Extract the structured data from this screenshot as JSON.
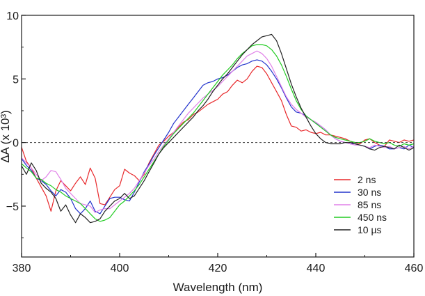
{
  "chart_data": {
    "type": "line",
    "xlabel": "Wavelength (nm)",
    "ylabel": "ΔA (x 10³)",
    "xlim": [
      380,
      460
    ],
    "ylim": [
      -9,
      10
    ],
    "xticks": [
      "380",
      "400",
      "420",
      "440",
      "460"
    ],
    "yticks": [
      "10",
      "5",
      "0",
      "−5"
    ],
    "grid": false,
    "legend_position": "lower-right",
    "reference_line": {
      "y": 0,
      "style": "dashed"
    },
    "series": [
      {
        "name": "2 ns",
        "color": "#e8282b",
        "x": [
          379.5,
          381,
          382,
          383,
          384,
          385,
          386,
          387,
          388,
          389,
          390,
          391,
          392,
          393,
          394,
          395,
          396,
          397,
          398,
          399,
          400,
          401,
          402,
          403,
          404,
          405,
          406,
          407,
          408,
          409,
          410,
          411,
          412,
          413,
          414,
          415,
          416,
          417,
          418,
          419,
          420,
          421,
          422,
          423,
          424,
          425,
          426,
          427,
          428,
          429,
          430,
          431,
          432,
          433,
          434,
          435,
          436,
          437,
          438,
          439,
          440,
          441,
          442,
          443,
          444,
          445,
          446,
          447,
          448,
          449,
          450,
          451,
          452,
          453,
          454,
          455,
          456,
          457,
          458,
          459,
          460
        ],
        "y": [
          0.2,
          -1.5,
          -2.0,
          -2.8,
          -3.5,
          -4.2,
          -5.4,
          -3.8,
          -3.0,
          -3.4,
          -3.8,
          -3.2,
          -2.7,
          -3.3,
          -2.0,
          -2.8,
          -4.8,
          -4.9,
          -4.3,
          -3.7,
          -3.4,
          -2.1,
          -2.4,
          -2.6,
          -3.0,
          -2.5,
          -1.6,
          -0.9,
          -0.2,
          0.1,
          0.5,
          0.8,
          1.2,
          1.6,
          1.8,
          2.2,
          2.4,
          2.7,
          3.0,
          3.2,
          3.4,
          3.8,
          4.0,
          4.5,
          4.9,
          4.7,
          5.0,
          5.6,
          6.0,
          5.9,
          5.4,
          4.7,
          4.0,
          3.3,
          2.2,
          1.3,
          1.2,
          0.9,
          1.0,
          0.8,
          0.7,
          0.8,
          0.6,
          0.6,
          0.5,
          0.4,
          0.3,
          0.1,
          0.0,
          -0.1,
          0.2,
          0.3,
          0.0,
          -0.2,
          -0.3,
          0.2,
          0.1,
          0.0,
          0.2,
          0.1,
          0.2
        ]
      },
      {
        "name": "30 ns",
        "color": "#2233cc",
        "x": [
          379.5,
          381,
          382,
          383,
          384,
          385,
          386,
          387,
          388,
          389,
          390,
          391,
          392,
          393,
          394,
          395,
          396,
          397,
          398,
          399,
          400,
          401,
          402,
          403,
          404,
          405,
          406,
          407,
          408,
          409,
          410,
          411,
          412,
          413,
          414,
          415,
          416,
          417,
          418,
          419,
          420,
          421,
          422,
          423,
          424,
          425,
          426,
          427,
          428,
          429,
          430,
          431,
          432,
          433,
          434,
          435,
          436,
          437,
          438,
          439,
          440,
          441,
          442,
          443,
          444,
          445,
          446,
          447,
          448,
          449,
          450,
          451,
          452,
          453,
          454,
          455,
          456,
          457,
          458,
          459,
          460
        ],
        "y": [
          -1.0,
          -1.8,
          -2.2,
          -2.8,
          -3.0,
          -3.3,
          -3.8,
          -4.2,
          -3.7,
          -3.9,
          -4.4,
          -5.2,
          -5.6,
          -5.2,
          -4.6,
          -5.4,
          -5.6,
          -5.0,
          -4.4,
          -4.3,
          -4.3,
          -4.5,
          -4.6,
          -3.9,
          -3.1,
          -2.3,
          -1.7,
          -1.0,
          -0.4,
          0.2,
          0.8,
          1.5,
          2.0,
          2.5,
          3.0,
          3.5,
          4.0,
          4.5,
          4.7,
          4.8,
          5.0,
          5.1,
          5.3,
          5.6,
          5.9,
          6.1,
          6.2,
          6.4,
          6.5,
          6.4,
          6.1,
          5.6,
          5.0,
          4.3,
          3.5,
          2.8,
          2.4,
          2.3,
          2.1,
          1.8,
          1.5,
          1.3,
          1.0,
          0.6,
          0.3,
          0.1,
          0.0,
          -0.1,
          -0.1,
          -0.2,
          -0.3,
          -0.5,
          -0.3,
          -0.2,
          -0.3,
          -0.5,
          -0.5,
          -0.4,
          -0.5,
          -0.2,
          -0.4
        ]
      },
      {
        "name": "85 ns",
        "color": "#e080e8",
        "x": [
          379.5,
          381,
          382,
          383,
          384,
          385,
          386,
          387,
          388,
          389,
          390,
          391,
          392,
          393,
          394,
          395,
          396,
          397,
          398,
          399,
          400,
          401,
          402,
          403,
          404,
          405,
          406,
          407,
          408,
          409,
          410,
          411,
          412,
          413,
          414,
          415,
          416,
          417,
          418,
          419,
          420,
          421,
          422,
          423,
          424,
          425,
          426,
          427,
          428,
          429,
          430,
          431,
          432,
          433,
          434,
          435,
          436,
          437,
          438,
          439,
          440,
          441,
          442,
          443,
          444,
          445,
          446,
          447,
          448,
          449,
          450,
          451,
          452,
          453,
          454,
          455,
          456,
          457,
          458,
          459,
          460
        ],
        "y": [
          -1.0,
          -1.6,
          -2.0,
          -2.5,
          -3.0,
          -2.7,
          -2.2,
          -2.3,
          -2.9,
          -3.6,
          -4.0,
          -4.4,
          -4.8,
          -4.9,
          -5.0,
          -5.5,
          -5.3,
          -5.2,
          -5.2,
          -4.9,
          -4.6,
          -4.3,
          -4.0,
          -3.6,
          -3.0,
          -2.4,
          -1.8,
          -1.3,
          -0.7,
          -0.2,
          0.3,
          0.8,
          1.3,
          1.8,
          2.3,
          2.7,
          3.1,
          3.5,
          3.8,
          4.1,
          4.4,
          4.8,
          5.2,
          5.6,
          6.0,
          6.4,
          6.8,
          7.0,
          7.2,
          7.0,
          6.6,
          6.0,
          5.2,
          4.4,
          3.6,
          3.0,
          2.6,
          2.3,
          2.0,
          1.8,
          1.6,
          1.3,
          1.0,
          0.6,
          0.3,
          0.1,
          0.0,
          -0.1,
          -0.2,
          -0.2,
          -0.3,
          -0.4,
          -0.2,
          -0.3,
          -0.4,
          -0.3,
          -0.5,
          -0.4,
          -0.3,
          -0.5,
          -0.3
        ]
      },
      {
        "name": "450 ns",
        "color": "#22cc22",
        "x": [
          379.5,
          381,
          382,
          383,
          384,
          385,
          386,
          387,
          388,
          389,
          390,
          391,
          392,
          393,
          394,
          395,
          396,
          397,
          398,
          399,
          400,
          401,
          402,
          403,
          404,
          405,
          406,
          407,
          408,
          409,
          410,
          411,
          412,
          413,
          414,
          415,
          416,
          417,
          418,
          419,
          420,
          421,
          422,
          423,
          424,
          425,
          426,
          427,
          428,
          429,
          430,
          431,
          432,
          433,
          434,
          435,
          436,
          437,
          438,
          439,
          440,
          441,
          442,
          443,
          444,
          445,
          446,
          447,
          448,
          449,
          450,
          451,
          452,
          453,
          454,
          455,
          456,
          457,
          458,
          459,
          460
        ],
        "y": [
          -1.5,
          -2.0,
          -2.3,
          -2.8,
          -2.9,
          -3.2,
          -3.4,
          -3.7,
          -3.9,
          -4.2,
          -4.4,
          -4.6,
          -4.8,
          -5.2,
          -5.6,
          -6.0,
          -6.2,
          -6.1,
          -5.9,
          -5.4,
          -4.9,
          -4.6,
          -4.2,
          -3.8,
          -3.3,
          -2.7,
          -2.1,
          -1.5,
          -0.9,
          -0.3,
          0.2,
          0.7,
          1.1,
          1.5,
          1.9,
          2.3,
          2.8,
          3.3,
          3.8,
          4.3,
          4.8,
          5.3,
          5.7,
          6.1,
          6.6,
          7.0,
          7.3,
          7.6,
          7.7,
          7.7,
          7.6,
          7.3,
          6.8,
          6.1,
          5.2,
          4.2,
          3.3,
          2.6,
          2.1,
          1.8,
          1.5,
          1.2,
          0.9,
          0.6,
          0.4,
          0.3,
          0.2,
          0.1,
          0.0,
          0.0,
          0.1,
          0.3,
          0.1,
          0.0,
          -0.1,
          0.0,
          -0.2,
          -0.3,
          -0.1,
          -0.2,
          -0.1
        ]
      },
      {
        "name": "10 µs",
        "color": "#222222",
        "x": [
          379.5,
          381,
          382,
          383,
          384,
          385,
          386,
          387,
          388,
          389,
          390,
          391,
          392,
          393,
          394,
          395,
          396,
          397,
          398,
          399,
          400,
          401,
          402,
          403,
          404,
          405,
          406,
          407,
          408,
          409,
          410,
          411,
          412,
          413,
          414,
          415,
          416,
          417,
          418,
          419,
          420,
          421,
          422,
          423,
          424,
          425,
          426,
          427,
          428,
          429,
          430,
          431,
          432,
          433,
          434,
          435,
          436,
          437,
          438,
          439,
          440,
          441,
          442,
          443,
          444,
          445,
          446,
          447,
          448,
          449,
          450,
          451,
          452,
          453,
          454,
          455,
          456,
          457,
          458,
          459,
          460
        ],
        "y": [
          -1.5,
          -2.5,
          -1.6,
          -2.2,
          -3.2,
          -3.6,
          -3.9,
          -4.4,
          -5.4,
          -4.9,
          -5.7,
          -6.3,
          -5.6,
          -5.9,
          -6.3,
          -6.2,
          -6.0,
          -5.4,
          -5.0,
          -4.6,
          -4.4,
          -4.0,
          -4.4,
          -4.2,
          -3.6,
          -3.0,
          -2.3,
          -1.6,
          -0.9,
          -0.4,
          0.0,
          0.4,
          0.8,
          1.2,
          1.6,
          2.0,
          2.5,
          2.9,
          3.4,
          4.0,
          4.5,
          5.0,
          5.4,
          5.9,
          6.4,
          6.9,
          7.3,
          7.7,
          8.0,
          8.3,
          8.4,
          8.5,
          8.0,
          7.0,
          5.8,
          4.6,
          3.6,
          2.7,
          2.0,
          1.3,
          0.7,
          0.3,
          0.0,
          -0.1,
          -0.1,
          -0.1,
          0.0,
          0.0,
          -0.1,
          -0.2,
          -0.3,
          -0.5,
          -0.6,
          -0.4,
          -0.3,
          -0.4,
          -0.5,
          -0.2,
          -0.4,
          -0.6,
          -0.4
        ]
      }
    ]
  }
}
